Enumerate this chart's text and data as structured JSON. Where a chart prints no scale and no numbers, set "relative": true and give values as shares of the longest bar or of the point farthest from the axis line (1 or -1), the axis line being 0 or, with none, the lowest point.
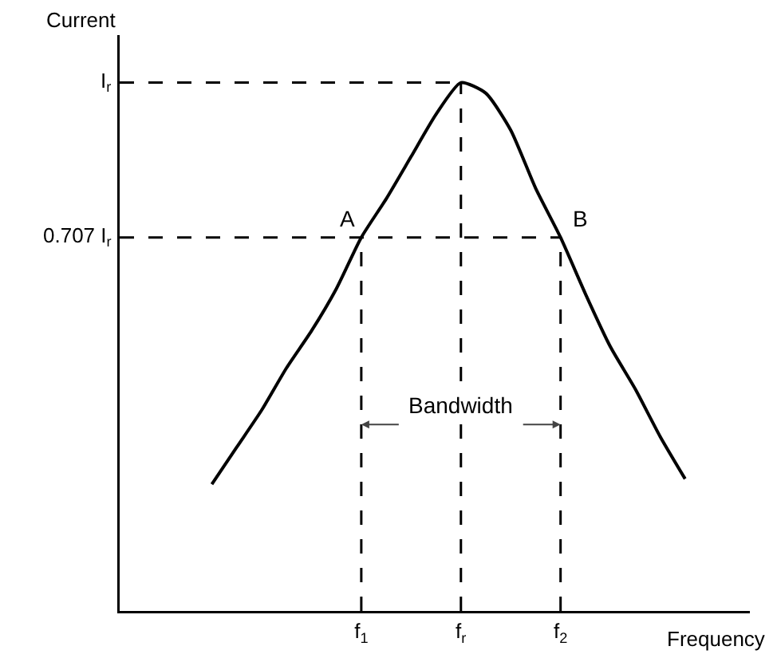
{
  "chart_data": {
    "type": "line",
    "xlabel": "Frequency",
    "ylabel": "Current",
    "relative": true,
    "categories": [
      null,
      null,
      null,
      null,
      null,
      null,
      "f$_{1}$",
      null,
      null,
      null,
      "f$_{r}$",
      null,
      null,
      null,
      "f$_{2}$",
      null,
      null,
      null,
      null,
      null
    ],
    "series": [
      {
        "color": "#000000",
        "values": [
          0.24,
          0.31,
          0.38,
          0.46,
          0.53,
          0.61,
          0.707,
          0.78,
          0.86,
          0.94,
          1,
          0.98,
          0.91,
          0.8,
          0.707,
          0.6,
          0.5,
          0.42,
          0.33,
          0.25
        ]
      }
    ],
    "ref_lines": [
      {
        "axis": "y",
        "value": 1,
        "label": "I$_{r}$",
        "line_style": "dashed",
        "color": "#000000"
      },
      {
        "axis": "y",
        "value": 0.707,
        "label": "0.707 I$_{r}$",
        "line_style": "dashed",
        "color": "#000000"
      },
      {
        "axis": "x",
        "value": "f$_{1}$",
        "line_style": "dashed",
        "color": "#000000"
      },
      {
        "axis": "x",
        "value": "f$_{r}$",
        "line_style": "dashed",
        "color": "#000000"
      },
      {
        "axis": "x",
        "value": "f$_{2}$",
        "line_style": "dashed",
        "color": "#000000"
      }
    ],
    "annotations": [
      {
        "text": "A",
        "x": "f$_{1}$",
        "y": 0.707
      },
      {
        "text": "B",
        "x": "f$_{2}$",
        "y": 0.707
      },
      {
        "text": "Bandwidth",
        "x": "f$_{r}$",
        "y": 0.353
      }
    ],
    "grid": false,
    "marker": "none",
    "line_style": "solid"
  }
}
